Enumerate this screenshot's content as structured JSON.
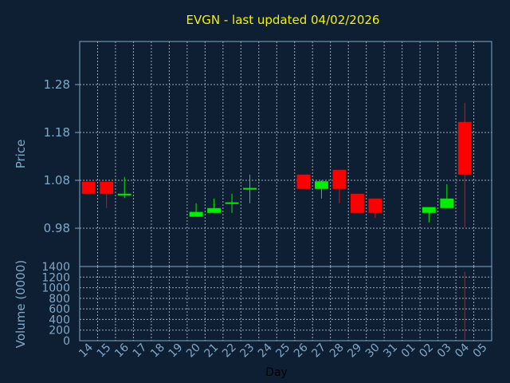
{
  "title": "EVGN - last updated 04/02/2026",
  "colors": {
    "background": "#0f1f33",
    "up": "#00ee00",
    "down": "#ff0000",
    "grid": "#9aa8b8",
    "axis": "#7fa8c8",
    "title": "#f2f200"
  },
  "chart_data": [
    {
      "type": "candlestick",
      "ylabel": "Price",
      "ylim": [
        0.9,
        1.37
      ],
      "yticks": [
        "0.98",
        "1.08",
        "1.18",
        "1.28"
      ],
      "grid": true,
      "candles": [
        {
          "x": "14",
          "open": 1.077,
          "high": 1.077,
          "low": 1.052,
          "close": 1.052
        },
        {
          "x": "15",
          "open": 1.077,
          "high": 1.077,
          "low": 1.022,
          "close": 1.052
        },
        {
          "x": "16",
          "open": 1.05,
          "high": 1.087,
          "low": 1.043,
          "close": 1.052
        },
        {
          "x": "20",
          "open": 1.004,
          "high": 1.032,
          "low": 1.004,
          "close": 1.014
        },
        {
          "x": "21",
          "open": 1.012,
          "high": 1.042,
          "low": 1.012,
          "close": 1.022
        },
        {
          "x": "22",
          "open": 1.032,
          "high": 1.052,
          "low": 1.012,
          "close": 1.034
        },
        {
          "x": "23",
          "open": 1.062,
          "high": 1.092,
          "low": 1.032,
          "close": 1.064
        },
        {
          "x": "26",
          "open": 1.092,
          "high": 1.092,
          "low": 1.062,
          "close": 1.062
        },
        {
          "x": "27",
          "open": 1.062,
          "high": 1.08,
          "low": 1.042,
          "close": 1.078
        },
        {
          "x": "28",
          "open": 1.102,
          "high": 1.102,
          "low": 1.032,
          "close": 1.062
        },
        {
          "x": "29",
          "open": 1.052,
          "high": 1.052,
          "low": 1.012,
          "close": 1.012
        },
        {
          "x": "30",
          "open": 1.042,
          "high": 1.042,
          "low": 1.002,
          "close": 1.012
        },
        {
          "x": "02",
          "open": 1.012,
          "high": 1.022,
          "low": 0.992,
          "close": 1.024
        },
        {
          "x": "03",
          "open": 1.022,
          "high": 1.072,
          "low": 1.022,
          "close": 1.042
        },
        {
          "x": "04",
          "open": 1.202,
          "high": 1.242,
          "low": 0.982,
          "close": 1.092
        }
      ]
    },
    {
      "type": "bar",
      "ylabel": "Volume (0000)",
      "ylim": [
        0,
        1400
      ],
      "yticks": [
        "0",
        "200",
        "400",
        "600",
        "800",
        "1000",
        "1200",
        "1400"
      ],
      "xlabel": "Day",
      "categories": [
        "14",
        "15",
        "16",
        "17",
        "18",
        "19",
        "20",
        "21",
        "22",
        "23",
        "24",
        "25",
        "26",
        "27",
        "28",
        "29",
        "30",
        "31",
        "01",
        "02",
        "03",
        "04",
        "05"
      ],
      "bars": [
        {
          "x": "04",
          "value": 1300,
          "color": "#ff0000"
        }
      ]
    }
  ]
}
